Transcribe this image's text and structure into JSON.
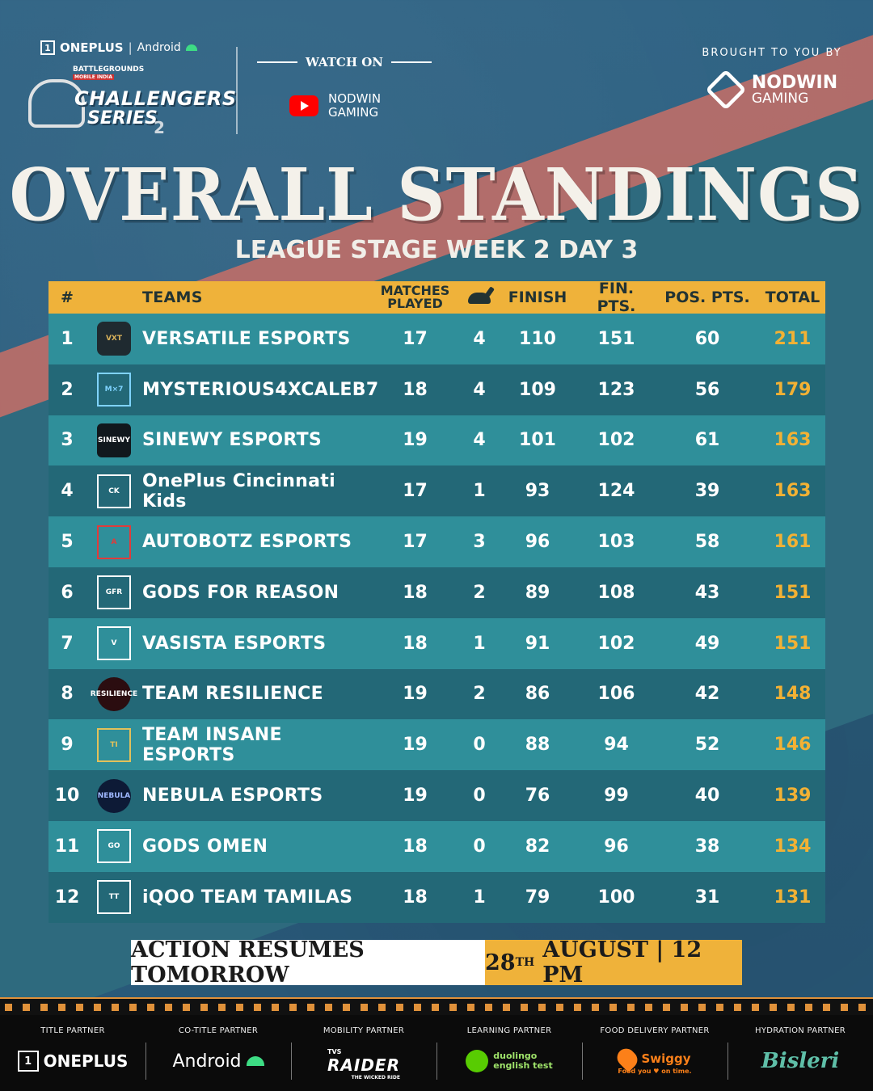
{
  "header": {
    "oneplus": "ONEPLUS",
    "separator": "|",
    "android": "Android",
    "bgmi_line1": "BATTLEGROUNDS",
    "bgmi_line2": "MOBILE INDIA",
    "challengers": "CHALLENGERS",
    "series": "SERIES",
    "edition": "2",
    "watch_on": "WATCH ON",
    "stream_line1": "NODWIN",
    "stream_line2": "GAMING",
    "brought": "BROUGHT TO YOU BY",
    "sponsor_line1": "NODWIN",
    "sponsor_line2": "GAMING"
  },
  "title": "OVERALL STANDINGS",
  "subtitle": "LEAGUE STAGE WEEK 2 DAY 3",
  "columns": {
    "rank": "#",
    "teams": "TEAMS",
    "matches_line1": "MATCHES",
    "matches_line2": "PLAYED",
    "wins_icon": "chicken-icon",
    "finish": "FINISH",
    "fin_pts": "FIN. PTS.",
    "pos_pts": "POS. PTS.",
    "total": "TOTAL"
  },
  "rows": [
    {
      "rank": "1",
      "team": "VERSATILE ESPORTS",
      "logo": "VXT",
      "mp": "17",
      "wins": "4",
      "finish": "110",
      "fin_pts": "151",
      "pos_pts": "60",
      "total": "211"
    },
    {
      "rank": "2",
      "team": "MYSTERIOUS4XCALEB7",
      "logo": "M×7",
      "mp": "18",
      "wins": "4",
      "finish": "109",
      "fin_pts": "123",
      "pos_pts": "56",
      "total": "179"
    },
    {
      "rank": "3",
      "team": "SINEWY ESPORTS",
      "logo": "SINEWY",
      "mp": "19",
      "wins": "4",
      "finish": "101",
      "fin_pts": "102",
      "pos_pts": "61",
      "total": "163"
    },
    {
      "rank": "4",
      "team": "OnePlus Cincinnati Kids",
      "logo": "CK",
      "mp": "17",
      "wins": "1",
      "finish": "93",
      "fin_pts": "124",
      "pos_pts": "39",
      "total": "163"
    },
    {
      "rank": "5",
      "team": "AUTOBOTZ ESPORTS",
      "logo": "A",
      "mp": "17",
      "wins": "3",
      "finish": "96",
      "fin_pts": "103",
      "pos_pts": "58",
      "total": "161"
    },
    {
      "rank": "6",
      "team": "GODS FOR REASON",
      "logo": "GFR",
      "mp": "18",
      "wins": "2",
      "finish": "89",
      "fin_pts": "108",
      "pos_pts": "43",
      "total": "151"
    },
    {
      "rank": "7",
      "team": "VASISTA ESPORTS",
      "logo": "V",
      "mp": "18",
      "wins": "1",
      "finish": "91",
      "fin_pts": "102",
      "pos_pts": "49",
      "total": "151"
    },
    {
      "rank": "8",
      "team": "TEAM RESILIENCE",
      "logo": "RESILIENCE",
      "mp": "19",
      "wins": "2",
      "finish": "86",
      "fin_pts": "106",
      "pos_pts": "42",
      "total": "148"
    },
    {
      "rank": "9",
      "team": "TEAM INSANE ESPORTS",
      "logo": "TI",
      "mp": "19",
      "wins": "0",
      "finish": "88",
      "fin_pts": "94",
      "pos_pts": "52",
      "total": "146"
    },
    {
      "rank": "10",
      "team": "NEBULA ESPORTS",
      "logo": "NEBULA",
      "mp": "19",
      "wins": "0",
      "finish": "76",
      "fin_pts": "99",
      "pos_pts": "40",
      "total": "139"
    },
    {
      "rank": "11",
      "team": "GODS OMEN",
      "logo": "GO",
      "mp": "18",
      "wins": "0",
      "finish": "82",
      "fin_pts": "96",
      "pos_pts": "38",
      "total": "134"
    },
    {
      "rank": "12",
      "team": "iQOO TEAM TAMILAS",
      "logo": "TT",
      "mp": "18",
      "wins": "1",
      "finish": "79",
      "fin_pts": "100",
      "pos_pts": "31",
      "total": "131"
    }
  ],
  "banner": {
    "left": "ACTION RESUMES TOMORROW",
    "day": "28",
    "suffix": "TH",
    "rest": "AUGUST | 12 PM"
  },
  "partners": [
    {
      "label": "TITLE PARTNER",
      "name": "ONEPLUS"
    },
    {
      "label": "CO-TITLE PARTNER",
      "name": "Android"
    },
    {
      "label": "MOBILITY PARTNER",
      "name": "RAIDER",
      "brand": "TVS",
      "tagline": "THE WICKED RIDE"
    },
    {
      "label": "LEARNING PARTNER",
      "name_line1": "duolingo",
      "name_line2": "english test"
    },
    {
      "label": "FOOD DELIVERY PARTNER",
      "name": "Swiggy",
      "tagline": "Food you ♥ on time."
    },
    {
      "label": "HYDRATION PARTNER",
      "name": "Bisleri"
    }
  ],
  "colors": {
    "background": "#2c5c7e",
    "accent": "#efb23a",
    "row_light": "#2f8f9a",
    "row_dark": "#236877",
    "total": "#f2b134",
    "stripe": "#c86f66"
  }
}
